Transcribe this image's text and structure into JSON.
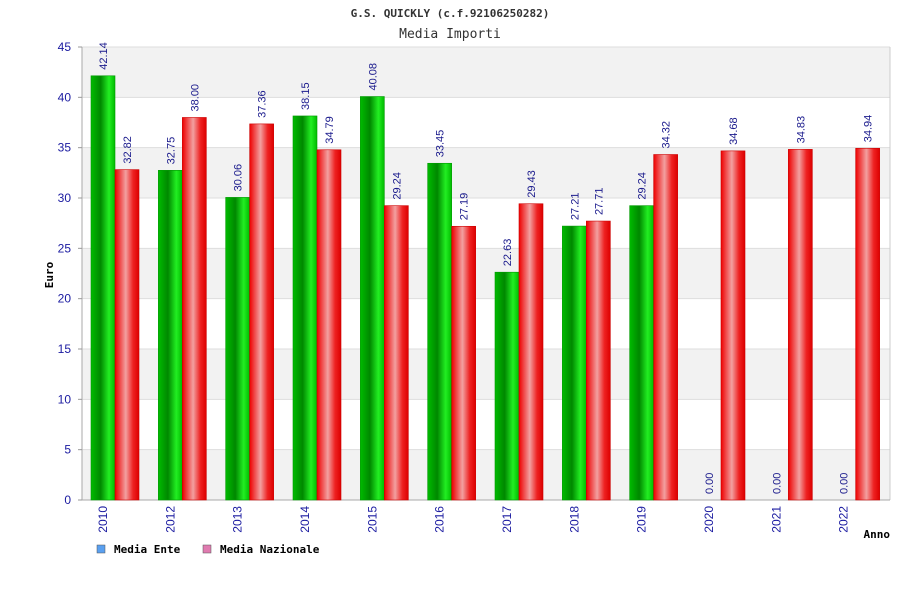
{
  "chart_data": {
    "type": "bar",
    "title": "G.S. QUICKLY (c.f.92106250282)",
    "subtitle": "Media Importi",
    "ylabel": "Euro",
    "xlabel": "Anno",
    "ylim": [
      0,
      45
    ],
    "yticks": [
      0,
      5,
      10,
      15,
      20,
      25,
      30,
      35,
      40,
      45
    ],
    "grid": true,
    "legend_position": "bottom-left",
    "categories": [
      "2010",
      "2012",
      "2013",
      "2014",
      "2015",
      "2016",
      "2017",
      "2018",
      "2019",
      "2020",
      "2021",
      "2022"
    ],
    "series": [
      {
        "name": "Media Ente",
        "color": "#00cc00",
        "legend_color": "#5aa0f0",
        "values": [
          42.14,
          32.75,
          30.06,
          38.15,
          40.08,
          33.45,
          22.63,
          27.21,
          29.24,
          0.0,
          0.0,
          0.0
        ],
        "labels": [
          "42.14",
          "32.75",
          "30.06",
          "38.15",
          "40.08",
          "33.45",
          "22.63",
          "27.21",
          "29.24",
          "0.00",
          "0.00",
          "0.00"
        ]
      },
      {
        "name": "Media Nazionale",
        "color": "#ee1111",
        "legend_color": "#e07bb0",
        "values": [
          32.82,
          38.0,
          37.36,
          34.79,
          29.24,
          27.19,
          29.43,
          27.71,
          34.32,
          34.68,
          34.83,
          34.94
        ],
        "labels": [
          "32.82",
          "38.00",
          "37.36",
          "34.79",
          "29.24",
          "27.19",
          "29.43",
          "27.71",
          "34.32",
          "34.68",
          "34.83",
          "34.94"
        ]
      }
    ]
  }
}
